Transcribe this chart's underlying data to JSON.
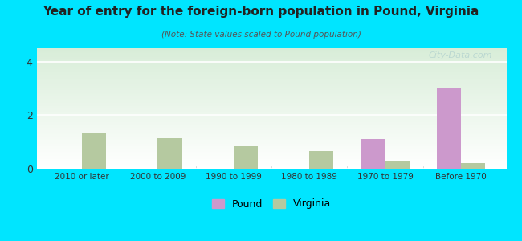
{
  "title": "Year of entry for the foreign-born population in Pound, Virginia",
  "subtitle": "(Note: State values scaled to Pound population)",
  "categories": [
    "2010 or later",
    "2000 to 2009",
    "1990 to 1999",
    "1980 to 1989",
    "1970 to 1979",
    "Before 1970"
  ],
  "pound_values": [
    0,
    0,
    0,
    0,
    1.1,
    3.0
  ],
  "virginia_values": [
    1.35,
    1.15,
    0.85,
    0.65,
    0.3,
    0.22
  ],
  "pound_color": "#cc99cc",
  "virginia_color": "#b5c9a0",
  "background_outer": "#00e5ff",
  "background_inner_top": "#d8edd8",
  "background_inner_bottom": "#ffffff",
  "ylim": [
    0,
    4.5
  ],
  "yticks": [
    0,
    2,
    4
  ],
  "bar_width": 0.32,
  "watermark": "City-Data.com",
  "legend_pound": "Pound",
  "legend_virginia": "Virginia"
}
